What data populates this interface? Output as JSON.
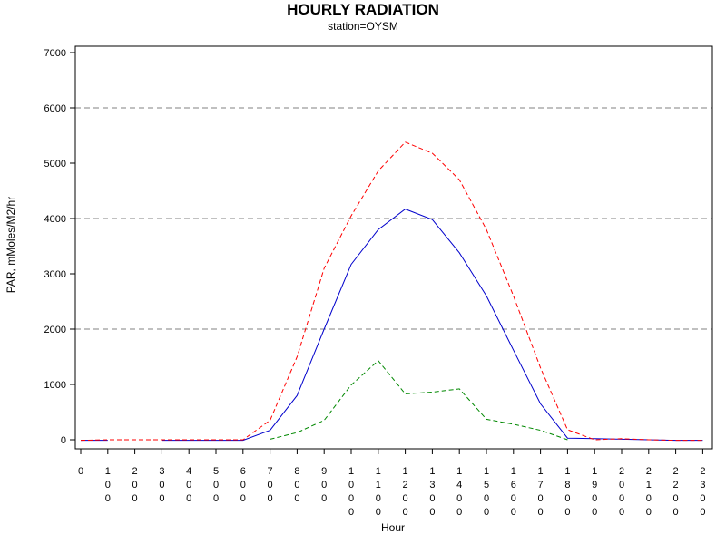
{
  "chart_data": {
    "type": "line",
    "title": "HOURLY RADIATION",
    "subtitle": "station=OYSM",
    "xlabel": "Hour",
    "ylabel": "PAR, mMoles/M2/hr",
    "ylim": [
      -150,
      7200
    ],
    "yticks": [
      0,
      1000,
      2000,
      3000,
      4000,
      5000,
      6000,
      7000
    ],
    "gridlines": [
      2000,
      4000,
      6000
    ],
    "grid": "dashed horizontal at 2000, 4000, 6000",
    "x": [
      0,
      100,
      200,
      300,
      400,
      500,
      600,
      700,
      800,
      900,
      1000,
      1100,
      1200,
      1300,
      1400,
      1500,
      1600,
      1700,
      1800,
      1900,
      2000,
      2100,
      2200,
      2300
    ],
    "xtick_labels": [
      "0",
      "100",
      "200",
      "300",
      "400",
      "500",
      "600",
      "700",
      "800",
      "900",
      "1000",
      "1100",
      "1200",
      "1300",
      "1400",
      "1500",
      "1600",
      "1700",
      "1800",
      "1900",
      "2000",
      "2100",
      "2200",
      "2300"
    ],
    "series": [
      {
        "color": "#0000cc",
        "style": "solid",
        "values": [
          -10,
          -10,
          null,
          -10,
          -10,
          -10,
          -10,
          170,
          800,
          2000,
          3170,
          3800,
          4170,
          3980,
          3380,
          2600,
          1620,
          650,
          30,
          20,
          10,
          0,
          -10,
          -10
        ]
      },
      {
        "color": "#ff0000",
        "style": "dashed",
        "values": [
          -10,
          0,
          0,
          0,
          0,
          0,
          0,
          350,
          1500,
          3100,
          4050,
          4860,
          5380,
          5180,
          4700,
          3800,
          2600,
          1300,
          180,
          0,
          20,
          0,
          -10,
          -10
        ]
      },
      {
        "color": "#008800",
        "style": "dashed",
        "values": [
          null,
          null,
          null,
          null,
          null,
          null,
          null,
          10,
          130,
          350,
          990,
          1430,
          830,
          860,
          920,
          370,
          280,
          170,
          0,
          null,
          null,
          null,
          null,
          null
        ]
      }
    ]
  }
}
